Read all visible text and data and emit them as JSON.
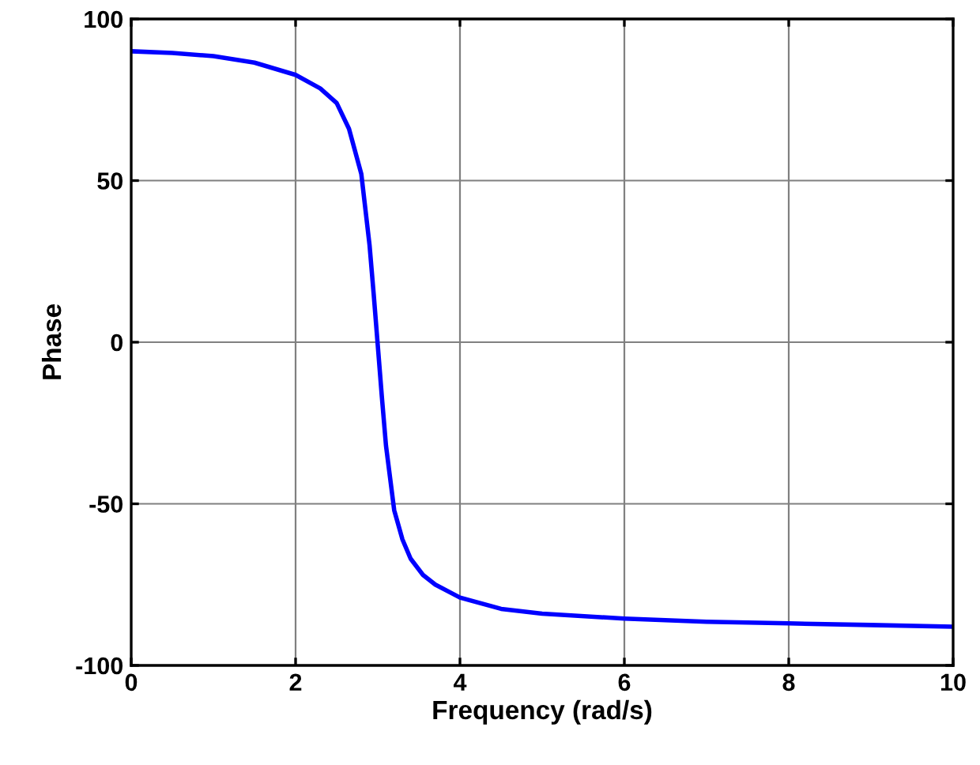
{
  "chart_data": {
    "type": "line",
    "xlabel": "Frequency (rad/s)",
    "ylabel": "Phase",
    "x": [
      0,
      0.5,
      1,
      1.5,
      2,
      2.3,
      2.5,
      2.65,
      2.8,
      2.9,
      2.95,
      3.0,
      3.05,
      3.1,
      3.2,
      3.3,
      3.4,
      3.55,
      3.7,
      4,
      4.5,
      5,
      6,
      7,
      8,
      9,
      10
    ],
    "series": [
      {
        "color": "#0000ff",
        "values": [
          90,
          89.5,
          88.5,
          86.5,
          82.7,
          78.5,
          74,
          66,
          52,
          30,
          15,
          -1,
          -17,
          -32,
          -52,
          -61,
          -67,
          -72,
          -75,
          -79,
          -82.5,
          -84,
          -85.5,
          -86.5,
          -87,
          -87.5,
          -88
        ]
      }
    ],
    "xlim": [
      0,
      10
    ],
    "ylim": [
      -100,
      100
    ],
    "xticks": [
      0,
      2,
      4,
      6,
      8,
      10
    ],
    "yticks": [
      -100,
      -50,
      0,
      50,
      100
    ],
    "grid": true,
    "line_style": "solid",
    "marker": "none"
  }
}
